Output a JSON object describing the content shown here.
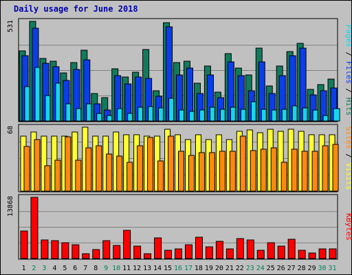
{
  "chart_data": {
    "type": "bar",
    "title": "Daily usage for June 2018",
    "categories": [
      "1",
      "2",
      "3",
      "4",
      "5",
      "6",
      "7",
      "8",
      "9",
      "10",
      "11",
      "12",
      "13",
      "14",
      "15",
      "16",
      "17",
      "18",
      "19",
      "20",
      "21",
      "22",
      "23",
      "24",
      "25",
      "26",
      "27",
      "28",
      "29",
      "30",
      "31"
    ],
    "weekend_days": [
      "2",
      "3",
      "9",
      "10",
      "16",
      "17",
      "23",
      "24",
      "30",
      "31"
    ],
    "panels": [
      {
        "y_max_label": "531",
        "series": [
          {
            "name": "Hits",
            "color": "#127a5d",
            "values": [
              372,
              531,
              334,
              318,
              257,
              313,
              379,
              148,
              123,
              279,
              235,
              260,
              381,
              162,
              524,
              312,
              318,
              202,
              293,
              155,
              360,
              282,
              244,
              388,
              188,
              294,
              370,
              415,
              170,
              193,
              225
            ]
          },
          {
            "name": "Files",
            "color": "#0b3ee8",
            "values": [
              349,
              493,
              306,
              289,
              216,
              276,
              326,
              90,
              59,
              243,
              196,
              234,
              227,
              133,
              501,
              244,
              283,
              145,
              246,
              125,
              314,
              243,
              160,
              315,
              146,
              241,
              349,
              389,
              140,
              162,
              177
            ]
          },
          {
            "name": "Pages",
            "color": "#17d4ef",
            "values": [
              184,
              286,
              135,
              203,
              93,
              66,
              91,
              42,
              29,
              67,
              40,
              72,
              77,
              68,
              120,
              59,
              51,
              59,
              75,
              62,
              73,
              63,
              103,
              63,
              59,
              63,
              81,
              68,
              58,
              30,
              66
            ]
          }
        ]
      },
      {
        "y_max_label": "68",
        "series": [
          {
            "name": "Visits",
            "color": "#ffff33",
            "values": [
              57,
              61,
              57,
              57,
              57,
              61,
              66,
              57,
              57,
              61,
              58,
              58,
              57,
              57,
              64,
              58,
              53,
              58,
              53,
              58,
              53,
              62,
              63,
              60,
              64,
              62,
              64,
              62,
              58,
              58,
              58
            ]
          },
          {
            "name": "Sites",
            "color": "#ff8810",
            "values": [
              46,
              53,
              26,
              32,
              56,
              32,
              45,
              47,
              38,
              36,
              30,
              47,
              55,
              31,
              57,
              41,
              37,
              40,
              40,
              41,
              41,
              57,
              42,
              43,
              45,
              30,
              43,
              41,
              41,
              47,
              48
            ]
          }
        ]
      },
      {
        "y_max_label": "13868",
        "series": [
          {
            "name": "KBytes",
            "color": "#ff0000",
            "values": [
              6258,
              13868,
              4256,
              4126,
              3612,
              3138,
              1072,
              2018,
              4026,
              2918,
              6421,
              2878,
              1128,
              4621,
              1915,
              2134,
              3049,
              4836,
              2632,
              3929,
              2236,
              4507,
              4258,
              1868,
              3578,
              2853,
              4337,
              1932,
              1169,
              2207,
              2200
            ]
          }
        ]
      }
    ],
    "side_labels": {
      "top": [
        {
          "text": "Pages",
          "color": "#17d4ef"
        },
        {
          "text": " / ",
          "color": "#000000"
        },
        {
          "text": "Files",
          "color": "#0b3ee8"
        },
        {
          "text": " / ",
          "color": "#000000"
        },
        {
          "text": "Hits",
          "color": "#127a5d"
        }
      ],
      "middle": [
        {
          "text": "Sites",
          "color": "#ff8810"
        },
        {
          "text": " / ",
          "color": "#000000"
        },
        {
          "text": "Visits",
          "color": "#ffff33"
        }
      ],
      "bottom": [
        {
          "text": "KBytes",
          "color": "#ff0000"
        }
      ]
    },
    "tick_colors": {
      "weekday": "#000000",
      "weekend": "#00805c"
    },
    "grid": true
  }
}
